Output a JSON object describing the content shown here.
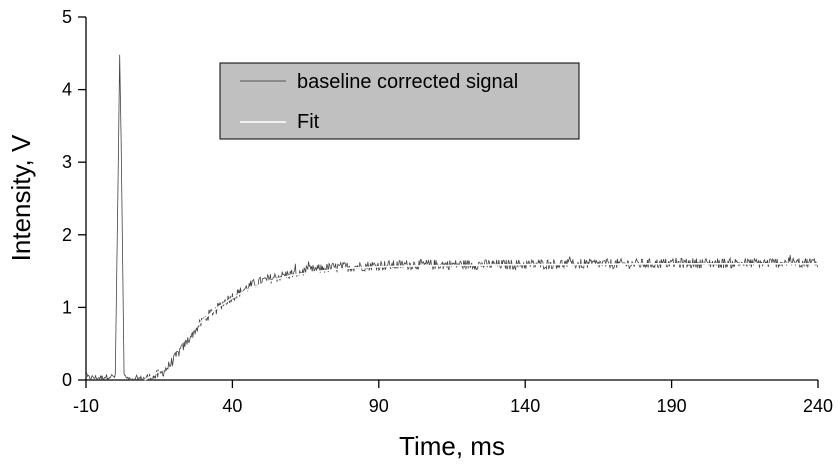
{
  "chart_data": {
    "type": "line",
    "xlabel": "Time, ms",
    "ylabel": "Intensity, V",
    "xlim": [
      -10,
      240
    ],
    "ylim": [
      0,
      5
    ],
    "x_ticks": [
      -10,
      40,
      90,
      140,
      190,
      240
    ],
    "y_ticks": [
      0,
      1,
      2,
      3,
      4,
      5
    ],
    "grid": false,
    "legend_position": "top-center",
    "legend_background": "#c0c0c0",
    "series": [
      {
        "name": "baseline corrected signal",
        "color": "#444444",
        "description_points": {
          "x": [
            -10,
            -6,
            -2,
            0,
            1,
            1.5,
            2,
            3,
            4,
            8,
            12,
            14,
            16,
            18,
            20,
            22,
            24,
            26,
            28,
            30,
            32,
            35,
            38,
            40,
            43,
            46,
            50,
            55,
            60,
            65,
            70,
            75,
            80,
            85,
            90,
            95,
            100,
            110,
            120,
            130,
            140,
            150,
            160,
            170,
            180,
            190,
            200,
            210,
            220,
            230,
            240
          ],
          "y": [
            0.04,
            0.03,
            0.05,
            0.05,
            2.9,
            4.48,
            3.3,
            0.08,
            0.02,
            0.02,
            0.03,
            0.06,
            0.1,
            0.18,
            0.28,
            0.4,
            0.5,
            0.62,
            0.72,
            0.82,
            0.9,
            1.0,
            1.1,
            1.15,
            1.22,
            1.3,
            1.36,
            1.42,
            1.46,
            1.5,
            1.53,
            1.55,
            1.56,
            1.57,
            1.58,
            1.58,
            1.59,
            1.59,
            1.59,
            1.59,
            1.59,
            1.6,
            1.6,
            1.6,
            1.6,
            1.61,
            1.61,
            1.61,
            1.61,
            1.62,
            1.62
          ]
        }
      },
      {
        "name": "Fit",
        "color": "#ffffff",
        "description_points": {
          "x": [
            10,
            15,
            20,
            25,
            30,
            35,
            40,
            45,
            50,
            55,
            60,
            70,
            80,
            90,
            100,
            120,
            140,
            160,
            180,
            200,
            220,
            240
          ],
          "y": [
            0,
            0.12,
            0.38,
            0.62,
            0.83,
            1.0,
            1.13,
            1.24,
            1.32,
            1.39,
            1.44,
            1.5,
            1.54,
            1.56,
            1.57,
            1.58,
            1.59,
            1.59,
            1.6,
            1.6,
            1.6,
            1.6
          ]
        }
      }
    ],
    "noise_amplitude": 0.07,
    "samples_per_ms": 4
  }
}
